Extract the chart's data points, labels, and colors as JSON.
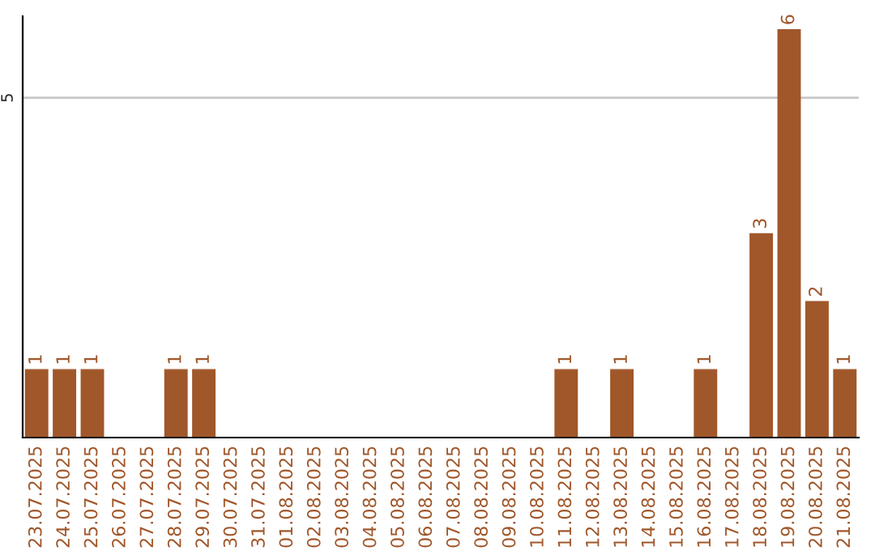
{
  "chart_data": {
    "type": "bar",
    "categories": [
      "23.07.2025",
      "24.07.2025",
      "25.07.2025",
      "26.07.2025",
      "27.07.2025",
      "28.07.2025",
      "29.07.2025",
      "30.07.2025",
      "31.07.2025",
      "01.08.2025",
      "02.08.2025",
      "03.08.2025",
      "04.08.2025",
      "05.08.2025",
      "06.08.2025",
      "07.08.2025",
      "08.08.2025",
      "09.08.2025",
      "10.08.2025",
      "11.08.2025",
      "12.08.2025",
      "13.08.2025",
      "14.08.2025",
      "15.08.2025",
      "16.08.2025",
      "17.08.2025",
      "18.08.2025",
      "19.08.2025",
      "20.08.2025",
      "21.08.2025"
    ],
    "values": [
      1,
      1,
      1,
      0,
      0,
      1,
      1,
      0,
      0,
      0,
      0,
      0,
      0,
      0,
      0,
      0,
      0,
      0,
      0,
      1,
      0,
      1,
      0,
      0,
      1,
      0,
      3,
      6,
      2,
      1
    ],
    "value_labels": [
      "1",
      "1",
      "1",
      null,
      null,
      "1",
      "1",
      null,
      null,
      null,
      null,
      null,
      null,
      null,
      null,
      null,
      null,
      null,
      null,
      "1",
      null,
      "1",
      null,
      null,
      "1",
      null,
      "3",
      "6",
      "2",
      "1"
    ],
    "color": "#a0572a",
    "ylim": [
      0,
      6.2
    ],
    "yticks": [
      5
    ],
    "grid": "y"
  }
}
